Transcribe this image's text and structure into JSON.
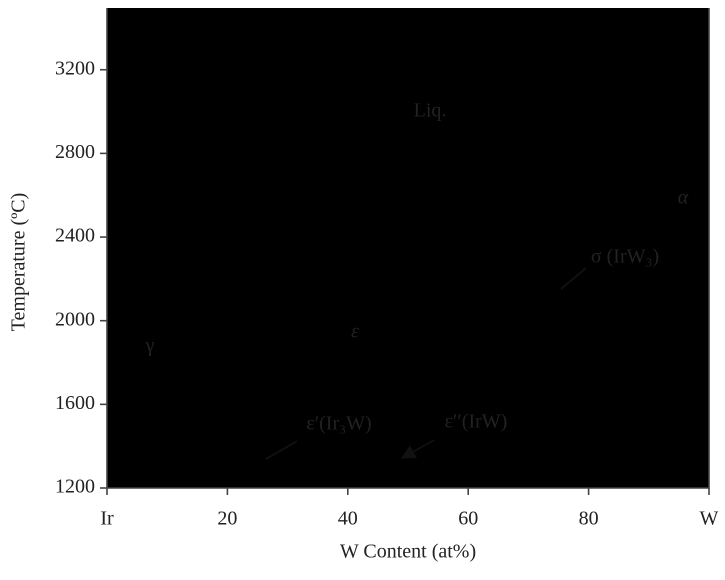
{
  "chart_data": {
    "type": "phase-diagram",
    "x_label": "W Content (at%)",
    "y_label": "Temperature (ºC)",
    "xlim": [
      0,
      100
    ],
    "ylim": [
      1200,
      3500
    ],
    "xticks": [
      {
        "value": 0,
        "label": "Ir"
      },
      20,
      40,
      60,
      80,
      {
        "value": 100,
        "label": "W"
      }
    ],
    "yticks": [
      1200,
      1600,
      2000,
      2400,
      2800,
      3200
    ],
    "annotations": [
      "Liq.",
      "γ",
      "ε",
      "α",
      "σ (IrW₃)",
      "ε′(Ir₃W)",
      "ε′′(IrW)"
    ],
    "gamma_color": "#e2eed8"
  }
}
